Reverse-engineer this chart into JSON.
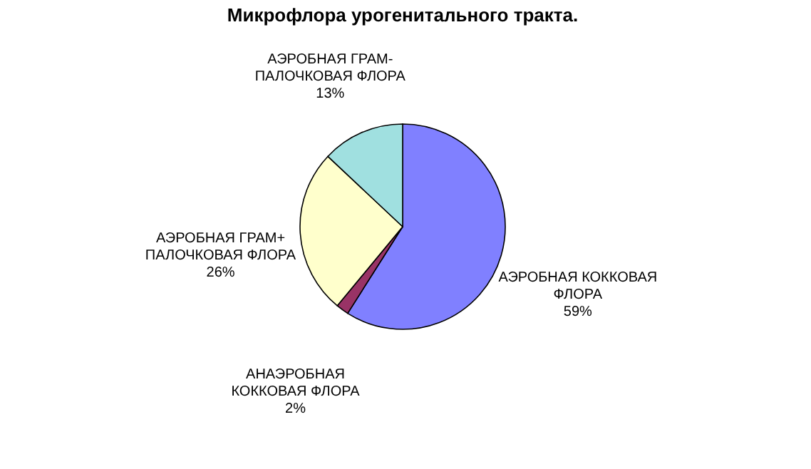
{
  "chart_data": {
    "type": "pie",
    "title": "Микрофлора урогенитального тракта.",
    "categories": [
      "АЭРОБНАЯ КОККОВАЯ ФЛОРА",
      "АНАЭРОБНАЯ КОККОВАЯ ФЛОРА",
      "АЭРОБНАЯ ГРАМ+ ПАЛОЧКОВАЯ ФЛОРА",
      "АЭРОБНАЯ ГРАМ- ПАЛОЧКОВАЯ ФЛОРА"
    ],
    "values": [
      59,
      2,
      26,
      13
    ],
    "value_labels": [
      "59%",
      "2%",
      "26%",
      "13%"
    ],
    "colors": [
      "#8080ff",
      "#993366",
      "#ffffcc",
      "#a0e0e0"
    ],
    "legend": false
  }
}
